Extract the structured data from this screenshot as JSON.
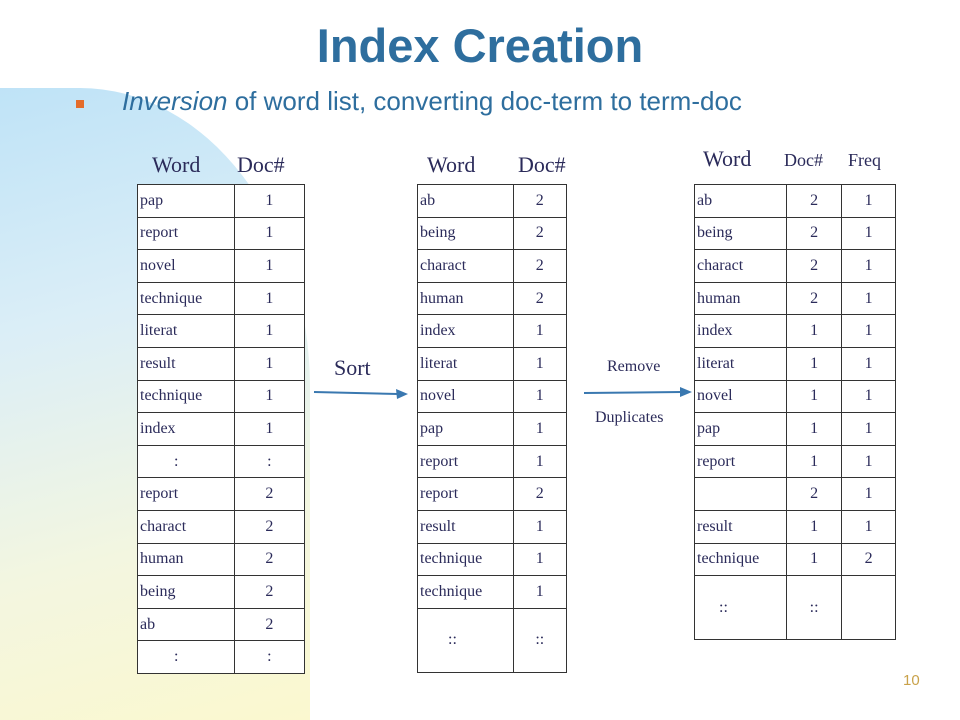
{
  "title": "Index Creation",
  "subtitle": {
    "italic": "Inversion",
    "rest": " of word list, converting doc-term to term-doc"
  },
  "table1": {
    "headers": [
      "Word",
      "Doc#"
    ],
    "rows": [
      [
        "pap",
        "1"
      ],
      [
        "report",
        "1"
      ],
      [
        "novel",
        "1"
      ],
      [
        "technique",
        "1"
      ],
      [
        "literat",
        "1"
      ],
      [
        "result",
        "1"
      ],
      [
        "technique",
        "1"
      ],
      [
        "index",
        "1"
      ],
      [
        ":",
        ":"
      ],
      [
        "report",
        "2"
      ],
      [
        "charact",
        "2"
      ],
      [
        "human",
        "2"
      ],
      [
        "being",
        "2"
      ],
      [
        "ab",
        "2"
      ],
      [
        ":",
        ":"
      ]
    ]
  },
  "sort_label": "Sort",
  "table2": {
    "headers": [
      "Word",
      "Doc#"
    ],
    "rows": [
      [
        "ab",
        "2"
      ],
      [
        "being",
        "2"
      ],
      [
        "charact",
        "2"
      ],
      [
        "human",
        "2"
      ],
      [
        "index",
        "1"
      ],
      [
        "literat",
        "1"
      ],
      [
        "novel",
        "1"
      ],
      [
        "pap",
        "1"
      ],
      [
        "report",
        "1"
      ],
      [
        "report",
        "2"
      ],
      [
        "result",
        "1"
      ],
      [
        "technique",
        "1"
      ],
      [
        "technique",
        "1"
      ]
    ],
    "ellipsis": [
      ":",
      ":"
    ]
  },
  "remove_label": "Remove",
  "duplicates_label": "Duplicates",
  "table3": {
    "headers": [
      "Word",
      "Doc#",
      "Freq"
    ],
    "rows": [
      [
        "ab",
        "2",
        "1"
      ],
      [
        "being",
        "2",
        "1"
      ],
      [
        "charact",
        "2",
        "1"
      ],
      [
        "human",
        "2",
        "1"
      ],
      [
        "index",
        "1",
        "1"
      ],
      [
        "literat",
        "1",
        "1"
      ],
      [
        "novel",
        "1",
        "1"
      ],
      [
        "pap",
        "1",
        "1"
      ],
      [
        "report",
        "1",
        "1"
      ],
      [
        "",
        "2",
        "1"
      ],
      [
        "result",
        "1",
        "1"
      ],
      [
        "technique",
        "1",
        "2"
      ]
    ],
    "ellipsis": [
      ":",
      ":",
      ""
    ]
  },
  "page_number": "10",
  "colors": {
    "title": "#2e6e9e",
    "bullet": "#e46c2a",
    "text": "#2b2b5a",
    "page_number": "#c9a24a"
  }
}
